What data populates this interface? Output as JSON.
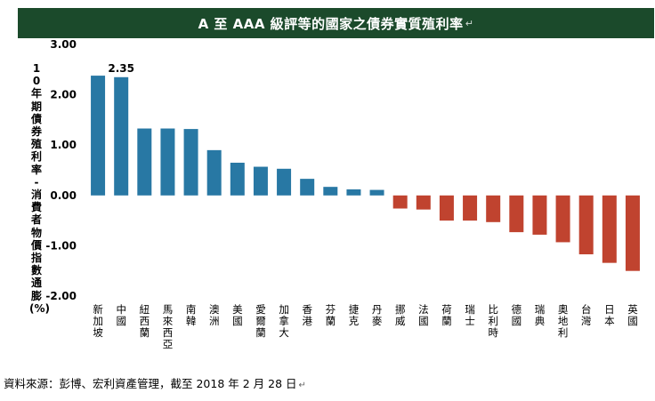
{
  "title": "A 至 AAA 級評等的國家之債券實質殖利率",
  "paragraph_mark": "↵",
  "source": "資料來源：彭博、宏利資產管理，截至 2018 年 2 月 28 日",
  "colors": {
    "title_bg": "#1b4a2b",
    "positive": "#2878a4",
    "negative": "#c0432f"
  },
  "chart_data": {
    "type": "bar",
    "title": "A 至 AAA 級評等的國家之債券實質殖利率",
    "ylabel": "10年期債券殖利率 - 消費者物價指數通膨 (%)",
    "ylim": [
      -2.0,
      3.0
    ],
    "yticks": [
      "3.00",
      "2.00",
      "1.00",
      "0.00",
      "-1.00",
      "-2.00"
    ],
    "ytick_values": [
      3,
      2,
      1,
      0,
      -1,
      -2
    ],
    "grid": false,
    "categories": [
      "新加坡",
      "中國",
      "紐西蘭",
      "馬來西亞",
      "南韓",
      "澳洲",
      "美國",
      "愛爾蘭",
      "加拿大",
      "香港",
      "芬蘭",
      "捷克",
      "丹麥",
      "挪威",
      "法國",
      "荷蘭",
      "瑞士",
      "比利時",
      "德國",
      "瑞典",
      "奧地利",
      "台灣",
      "日本",
      "英國"
    ],
    "values": [
      2.38,
      2.35,
      1.33,
      1.33,
      1.32,
      0.9,
      0.65,
      0.57,
      0.53,
      0.33,
      0.17,
      0.12,
      0.11,
      -0.26,
      -0.28,
      -0.5,
      -0.5,
      -0.53,
      -0.73,
      -0.78,
      -0.93,
      -1.17,
      -1.34,
      -1.5
    ],
    "data_labels": [
      {
        "index": 1,
        "text": "2.35"
      }
    ]
  }
}
